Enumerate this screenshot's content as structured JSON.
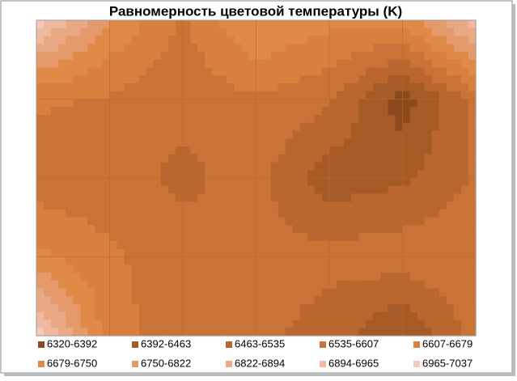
{
  "chart_data": {
    "type": "contour",
    "title": "Равномерность цветовой температуры (K)",
    "levels": [
      6320,
      6392,
      6463,
      6535,
      6607,
      6679,
      6750,
      6822,
      6894,
      6965,
      7037
    ],
    "series": [
      {
        "name": "6320-6392",
        "color": "#8c4a1c"
      },
      {
        "name": "6392-6463",
        "color": "#a65a26"
      },
      {
        "name": "6463-6535",
        "color": "#b9672f"
      },
      {
        "name": "6535-6607",
        "color": "#c97436"
      },
      {
        "name": "6607-6679",
        "color": "#d8803e"
      },
      {
        "name": "6679-6750",
        "color": "#e08a48"
      },
      {
        "name": "6750-6822",
        "color": "#e49a6a"
      },
      {
        "name": "6822-6894",
        "color": "#e9a985"
      },
      {
        "name": "6894-6965",
        "color": "#efbaa0"
      },
      {
        "name": "6965-7037",
        "color": "#f3cbb8"
      }
    ],
    "z": [
      [
        7000,
        6750,
        6600,
        6760,
        6700,
        6700,
        6950
      ],
      [
        6620,
        6600,
        6550,
        6600,
        6550,
        6350,
        6560
      ],
      [
        6560,
        6560,
        6520,
        6560,
        6420,
        6450,
        6540
      ],
      [
        6700,
        6620,
        6560,
        6560,
        6560,
        6580,
        6600
      ],
      [
        7000,
        6640,
        6560,
        6560,
        6500,
        6380,
        6560
      ]
    ],
    "grid": true
  }
}
